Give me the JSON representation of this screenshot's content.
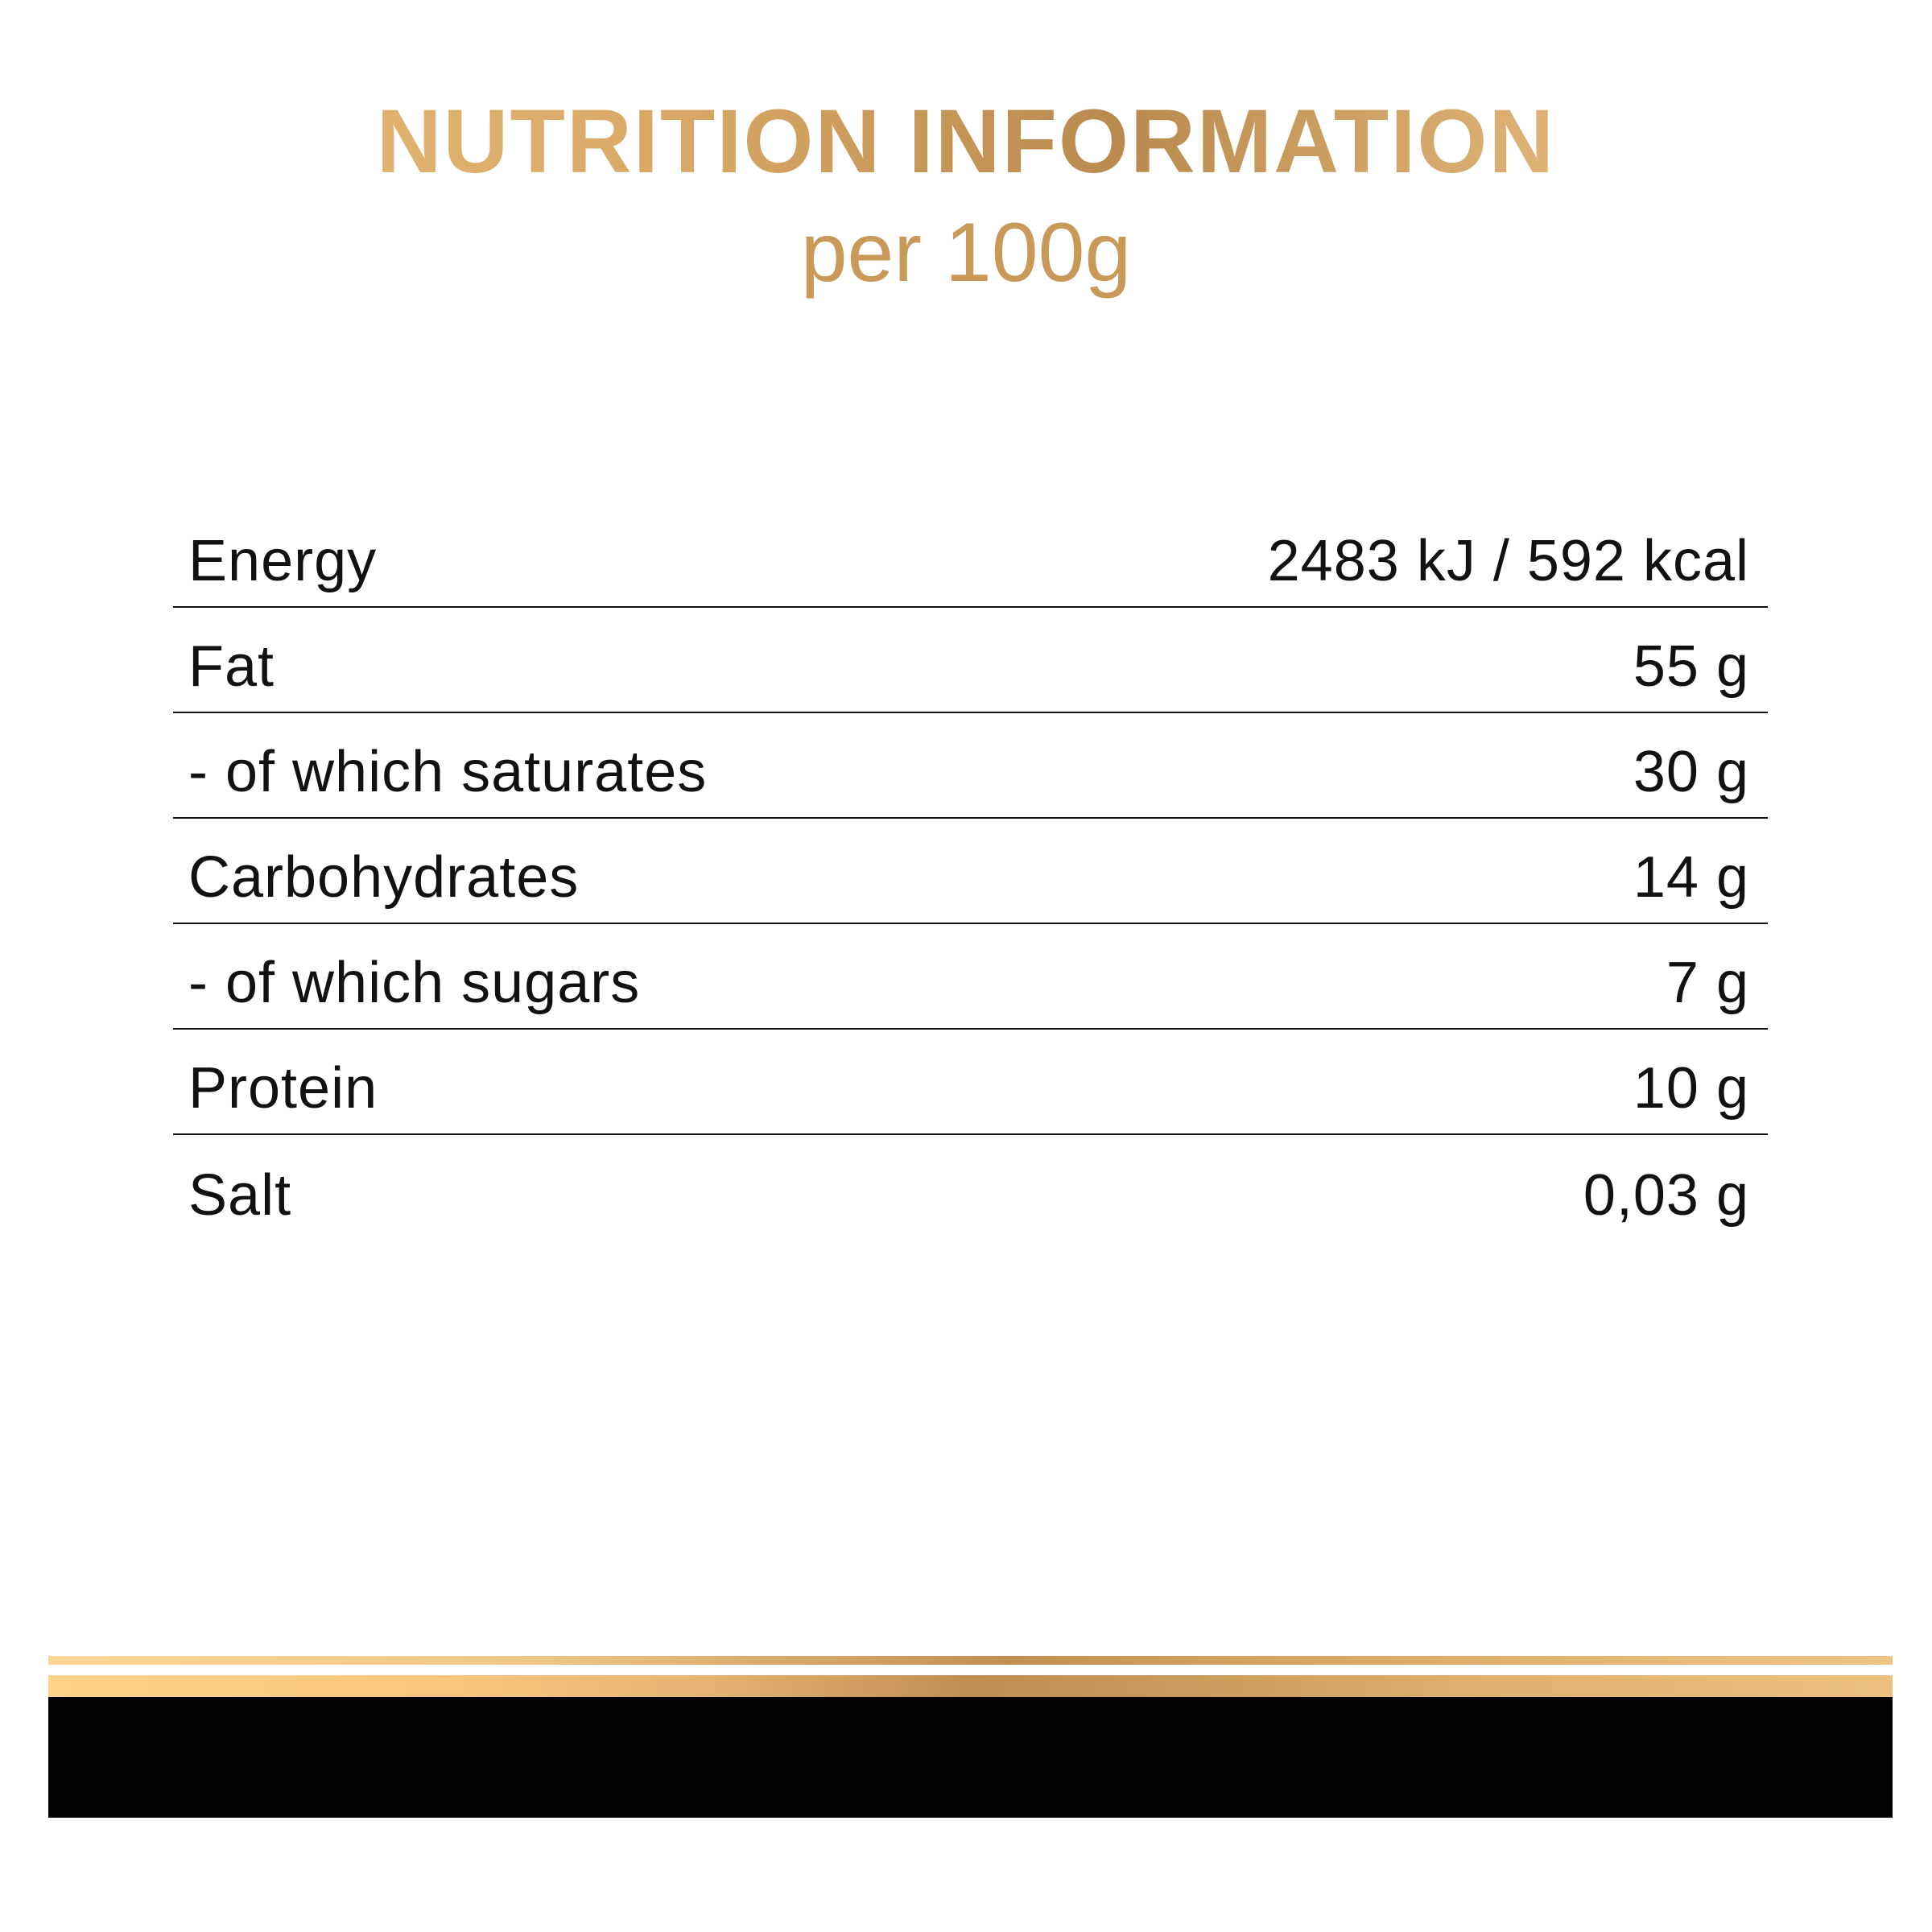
{
  "header": {
    "title": "NUTRITION INFORMATION",
    "subtitle": "per 100g"
  },
  "nutrition": {
    "rows": [
      {
        "label": "Energy",
        "value": "2483 kJ / 592 kcal"
      },
      {
        "label": "Fat",
        "value": "55 g"
      },
      {
        "label": "- of which saturates",
        "value": "30 g"
      },
      {
        "label": "Carbohydrates",
        "value": "14 g"
      },
      {
        "label": "- of which sugars",
        "value": "7 g"
      },
      {
        "label": "Protein",
        "value": "10 g"
      },
      {
        "label": "Salt",
        "value": "0,03 g"
      }
    ]
  },
  "colors": {
    "gold": "#c9995a",
    "text": "#111111",
    "band": "#030303"
  }
}
